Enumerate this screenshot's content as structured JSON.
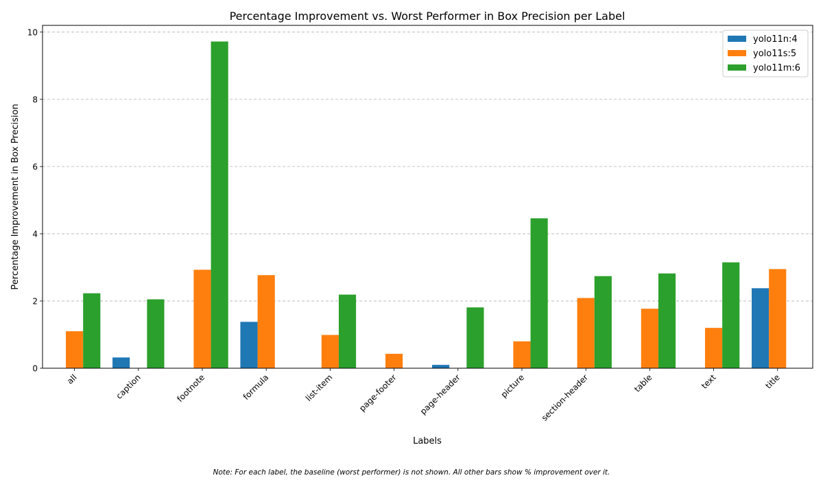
{
  "chart_data": {
    "type": "bar",
    "title": "Percentage Improvement vs. Worst Performer in Box Precision per Label",
    "xlabel": "Labels",
    "ylabel": "Percentage Improvement in Box Precision",
    "categories": [
      "all",
      "caption",
      "footnote",
      "formula",
      "list-item",
      "page-footer",
      "page-header",
      "picture",
      "section-header",
      "table",
      "text",
      "title"
    ],
    "series": [
      {
        "name": "yolo11n:4",
        "color": "#1f77b4",
        "values": [
          null,
          0.32,
          null,
          1.38,
          null,
          null,
          0.1,
          null,
          null,
          null,
          null,
          2.38
        ]
      },
      {
        "name": "yolo11s:5",
        "color": "#ff7f0e",
        "values": [
          1.1,
          null,
          2.93,
          2.77,
          0.99,
          0.43,
          null,
          0.8,
          2.09,
          1.77,
          1.2,
          2.95
        ]
      },
      {
        "name": "yolo11m:6",
        "color": "#2ca02c",
        "values": [
          2.23,
          2.05,
          9.72,
          null,
          2.19,
          null,
          1.81,
          4.46,
          2.74,
          2.82,
          3.15,
          null
        ]
      }
    ],
    "ylim": [
      0,
      10.2
    ],
    "yticks": [
      0,
      2,
      4,
      6,
      8,
      10
    ],
    "grid": "y",
    "legend": "top-right"
  },
  "note": "Note: For each label, the baseline (worst performer) is not shown. All other bars show % improvement over it."
}
